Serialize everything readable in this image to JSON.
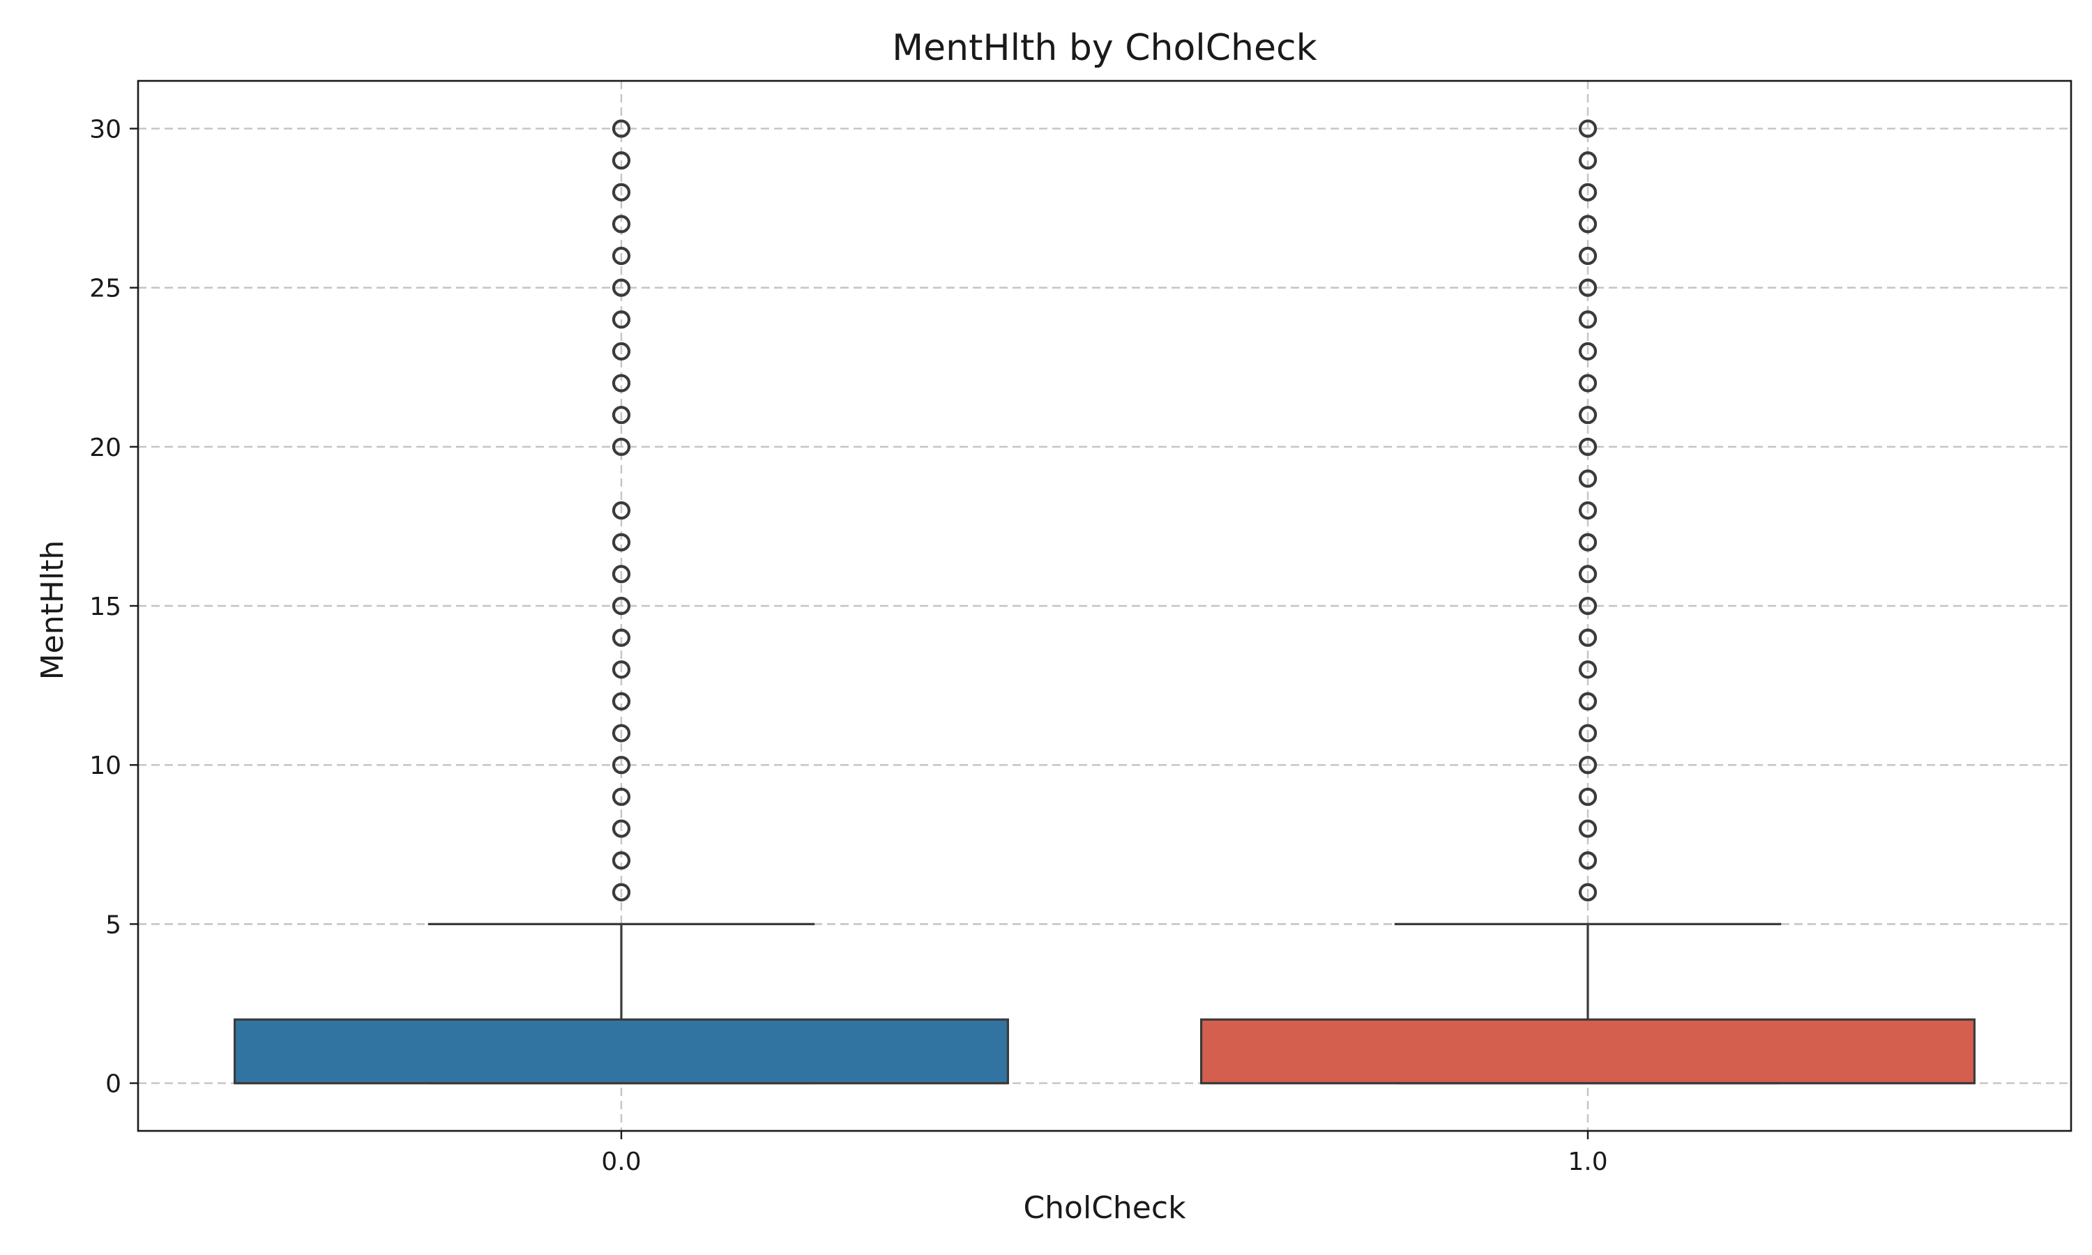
{
  "chart_data": {
    "type": "box",
    "title": "MentHlth by CholCheck",
    "xlabel": "CholCheck",
    "ylabel": "MentHlth",
    "categories": [
      "0.0",
      "1.0"
    ],
    "ylim": [
      -1.5,
      31.5
    ],
    "yticks": [
      0,
      5,
      10,
      15,
      20,
      25,
      30
    ],
    "grid": true,
    "series": [
      {
        "category": "0.0",
        "color": "#3274a1",
        "q1": 0,
        "median": 0,
        "q3": 2,
        "whisker_low": 0,
        "whisker_high": 5,
        "outliers": [
          6,
          7,
          8,
          9,
          10,
          11,
          12,
          13,
          14,
          15,
          16,
          17,
          18,
          20,
          21,
          22,
          23,
          24,
          25,
          26,
          27,
          28,
          29,
          30
        ]
      },
      {
        "category": "1.0",
        "color": "#d45f4f",
        "q1": 0,
        "median": 0,
        "q3": 2,
        "whisker_low": 0,
        "whisker_high": 5,
        "outliers": [
          6,
          7,
          8,
          9,
          10,
          11,
          12,
          13,
          14,
          15,
          16,
          17,
          18,
          19,
          20,
          21,
          22,
          23,
          24,
          25,
          26,
          27,
          28,
          29,
          30
        ]
      }
    ]
  }
}
